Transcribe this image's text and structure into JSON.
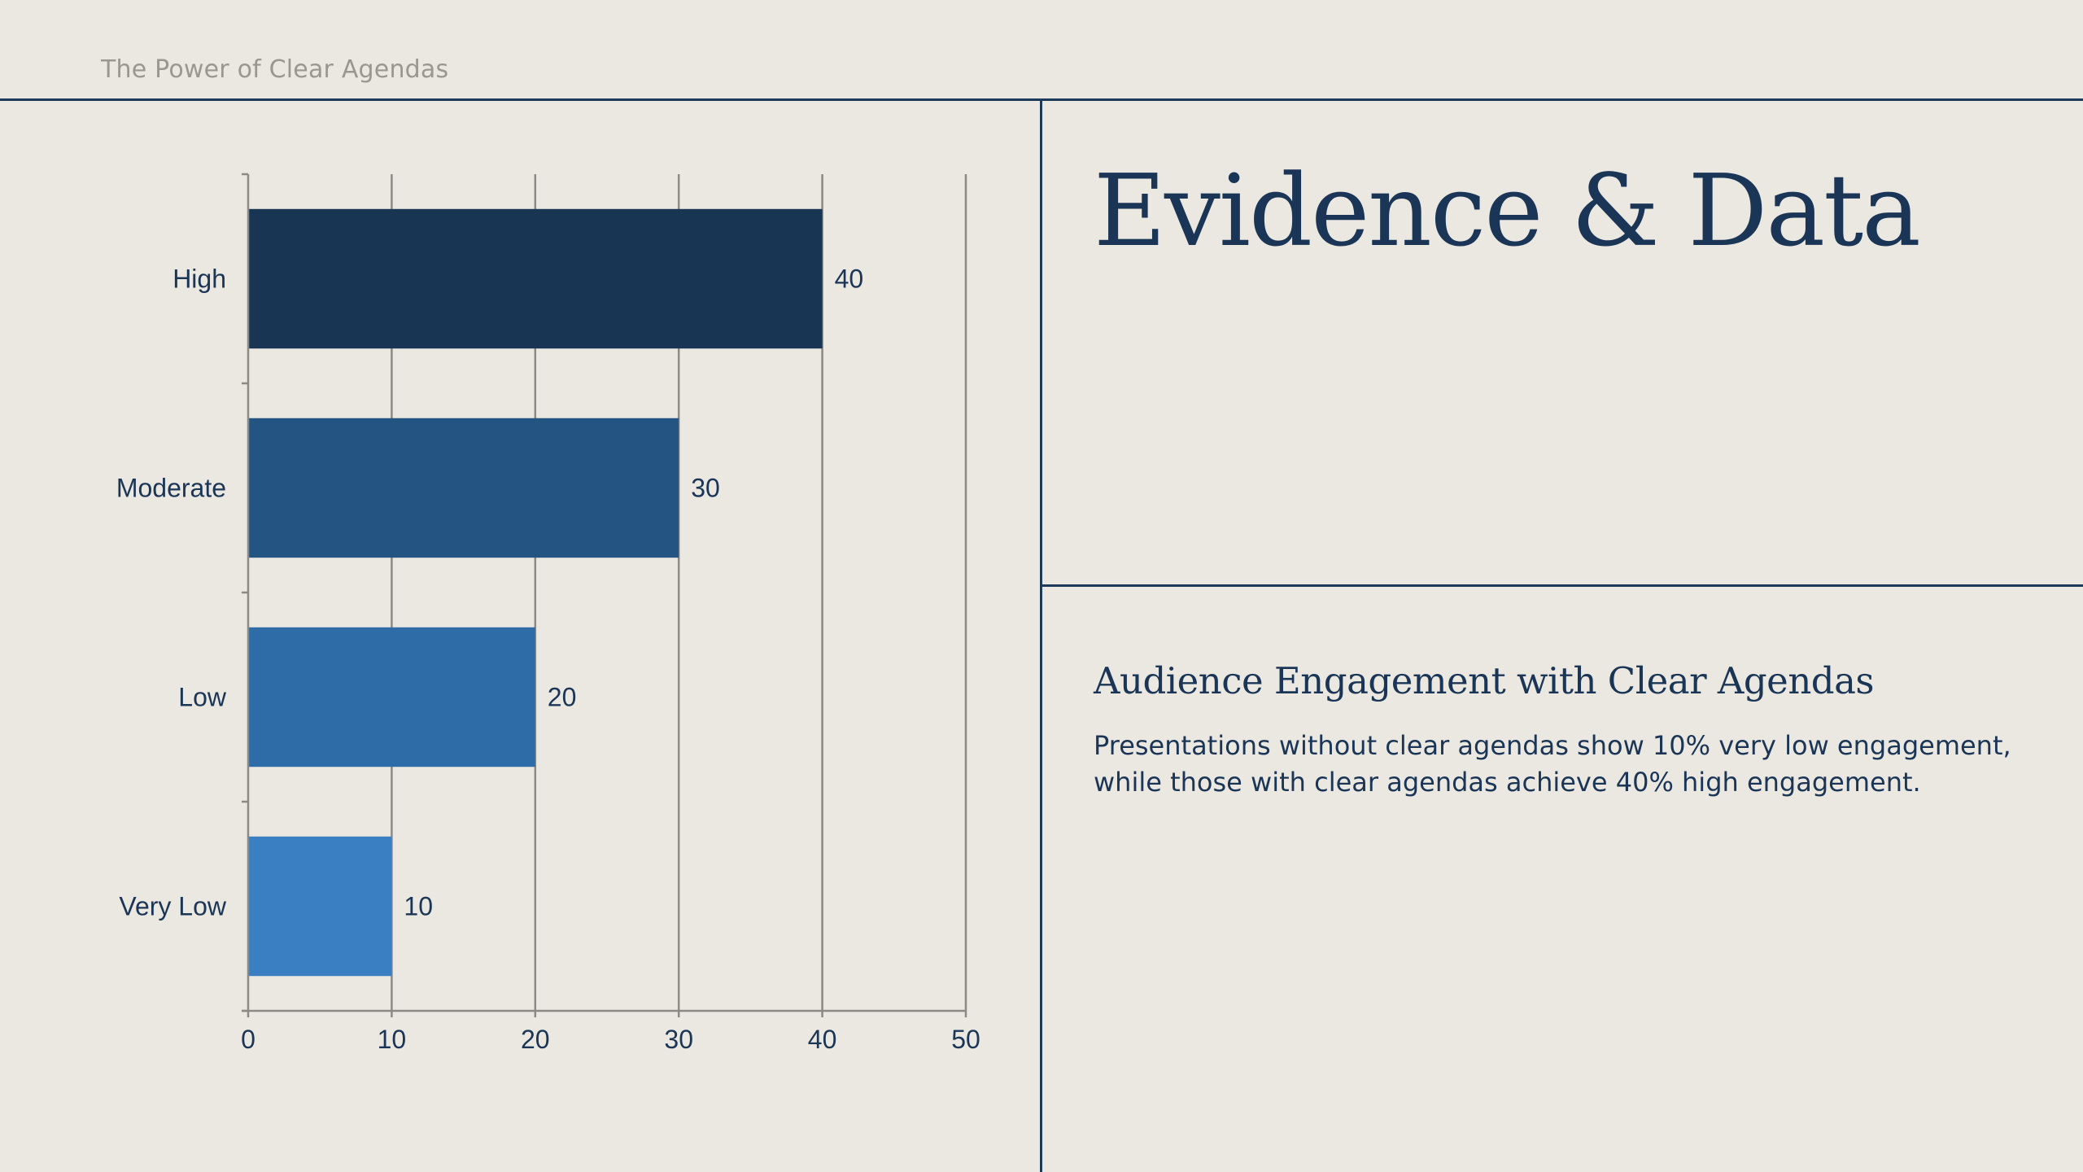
{
  "slide": {
    "header": "The Power of Clear Agendas",
    "title": "Evidence & Data",
    "subheading": "Audience Engagement with Clear Agendas",
    "body": "Presentations without clear agendas show 10% very low engagement, while those with clear agendas achieve 40% high engagement."
  },
  "colors": {
    "background": "#ebe8e1",
    "rule": "#1b3a5c",
    "text": "#1a3556",
    "grid": "#8c8a85"
  },
  "chart_data": {
    "type": "bar",
    "orientation": "horizontal",
    "categories": [
      "High",
      "Moderate",
      "Low",
      "Very Low"
    ],
    "values": [
      40,
      30,
      20,
      10
    ],
    "data_labels": [
      "40",
      "30",
      "20",
      "10"
    ],
    "bar_colors": [
      "#183654",
      "#235482",
      "#2d6ca6",
      "#3a7fc2"
    ],
    "xlim": [
      0,
      50
    ],
    "xticks": [
      0,
      10,
      20,
      30,
      40,
      50
    ],
    "xtick_labels": [
      "0",
      "10",
      "20",
      "30",
      "40",
      "50"
    ],
    "grid": "vertical",
    "legend": "none",
    "title": "",
    "xlabel": "",
    "ylabel": ""
  }
}
